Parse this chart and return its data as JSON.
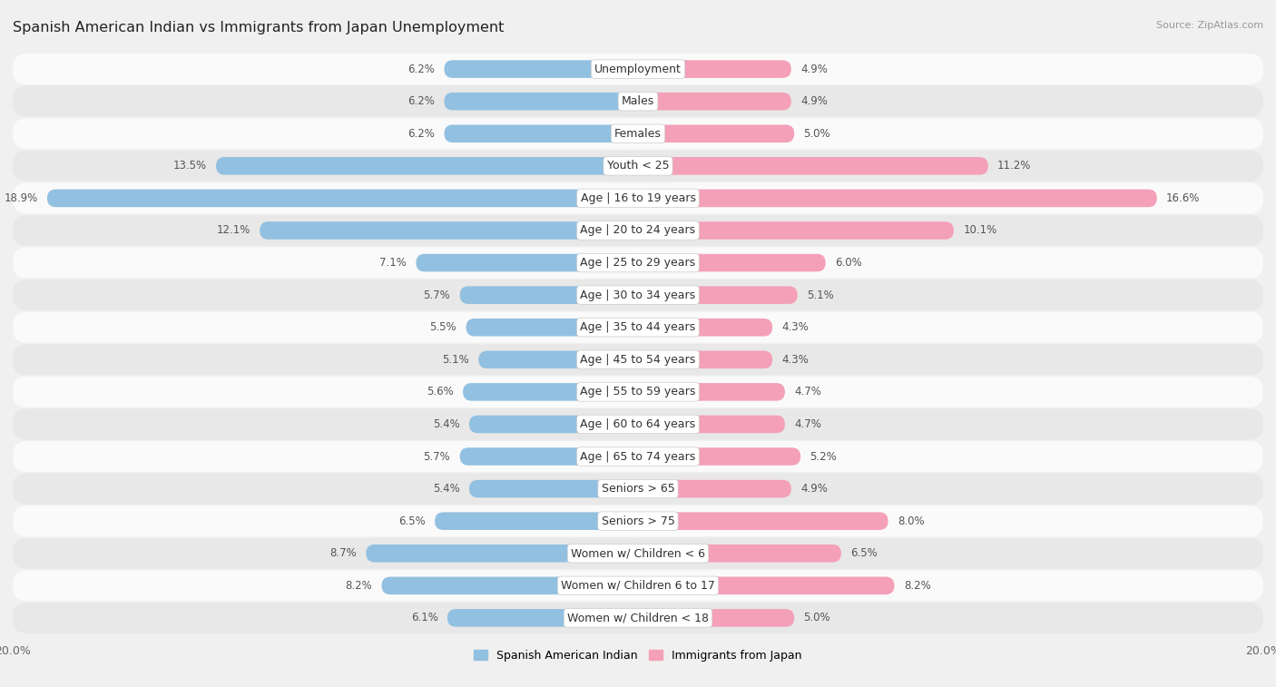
{
  "title": "Spanish American Indian vs Immigrants from Japan Unemployment",
  "source": "Source: ZipAtlas.com",
  "categories": [
    "Unemployment",
    "Males",
    "Females",
    "Youth < 25",
    "Age | 16 to 19 years",
    "Age | 20 to 24 years",
    "Age | 25 to 29 years",
    "Age | 30 to 34 years",
    "Age | 35 to 44 years",
    "Age | 45 to 54 years",
    "Age | 55 to 59 years",
    "Age | 60 to 64 years",
    "Age | 65 to 74 years",
    "Seniors > 65",
    "Seniors > 75",
    "Women w/ Children < 6",
    "Women w/ Children 6 to 17",
    "Women w/ Children < 18"
  ],
  "left_values": [
    6.2,
    6.2,
    6.2,
    13.5,
    18.9,
    12.1,
    7.1,
    5.7,
    5.5,
    5.1,
    5.6,
    5.4,
    5.7,
    5.4,
    6.5,
    8.7,
    8.2,
    6.1
  ],
  "right_values": [
    4.9,
    4.9,
    5.0,
    11.2,
    16.6,
    10.1,
    6.0,
    5.1,
    4.3,
    4.3,
    4.7,
    4.7,
    5.2,
    4.9,
    8.0,
    6.5,
    8.2,
    5.0
  ],
  "left_color": "#92c0e0",
  "right_color": "#f4a0b8",
  "left_label": "Spanish American Indian",
  "right_label": "Immigrants from Japan",
  "axis_max": 20.0,
  "bg_color": "#f0f0f0",
  "row_colors": [
    "#fafafa",
    "#e8e8e8"
  ],
  "title_fontsize": 11.5,
  "label_fontsize": 9,
  "value_fontsize": 8.5,
  "legend_fontsize": 9,
  "source_fontsize": 8
}
